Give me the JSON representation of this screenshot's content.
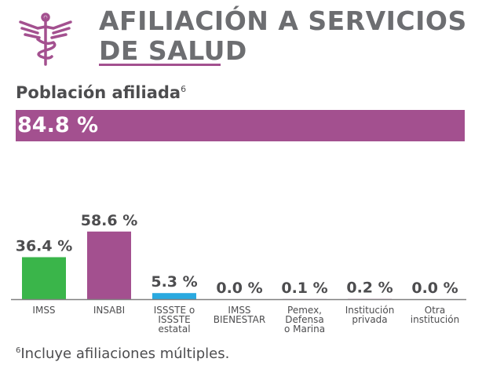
{
  "header": {
    "title_line1": "AFILIACIÓN A SERVICIOS",
    "title_line2": "DE SALUD",
    "icon": "caduceus-icon"
  },
  "subtitle": {
    "text": "Población afiliada",
    "footnote_mark": "6"
  },
  "total": {
    "value": "84.8 %"
  },
  "footnote": {
    "mark": "6",
    "text": "Incluye afiliaciones múltiples."
  },
  "colors": {
    "accent": "#a3508f",
    "imss": "#3ab54a",
    "insabi": "#a3508f",
    "issste": "#29a9e0",
    "text": "#4d4d4f"
  },
  "chart_data": {
    "type": "bar",
    "categories": [
      [
        "IMSS"
      ],
      [
        "INSABI"
      ],
      [
        "ISSSTE o",
        "ISSSTE",
        "estatal"
      ],
      [
        "IMSS",
        "BIENESTAR"
      ],
      [
        "Pemex,",
        "Defensa",
        "o Marina"
      ],
      [
        "Institución",
        "privada"
      ],
      [
        "Otra",
        "institución"
      ]
    ],
    "values": [
      36.4,
      58.6,
      5.3,
      0.0,
      0.1,
      0.2,
      0.0
    ],
    "value_labels": [
      "36.4 %",
      "58.6 %",
      "5.3 %",
      "0.0 %",
      "0.1 %",
      "0.2 %",
      "0.0 %"
    ],
    "bar_colors": [
      "#3ab54a",
      "#a3508f",
      "#29a9e0",
      "#a3508f",
      "#a3508f",
      "#a3508f",
      "#a3508f"
    ],
    "ylim": [
      0,
      100
    ],
    "grid": false
  }
}
